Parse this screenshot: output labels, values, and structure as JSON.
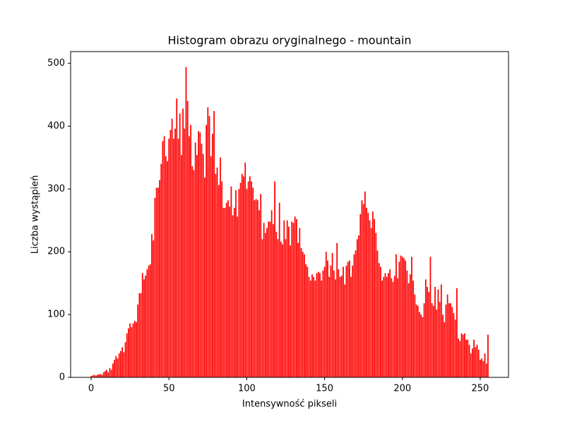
{
  "chart_data": {
    "type": "bar",
    "title": "Histogram obrazu oryginalnego - mountain",
    "x_label": "Intensywność pikseli",
    "y_label": "Liczba wystąpień",
    "color": "#ff0000",
    "x": [
      0,
      1,
      2,
      3,
      4,
      5,
      6,
      7,
      8,
      9,
      10,
      11,
      12,
      13,
      14,
      15,
      16,
      17,
      18,
      19,
      20,
      21,
      22,
      23,
      24,
      25,
      26,
      27,
      28,
      29,
      30,
      31,
      32,
      33,
      34,
      35,
      36,
      37,
      38,
      39,
      40,
      41,
      42,
      43,
      44,
      45,
      46,
      47,
      48,
      49,
      50,
      51,
      52,
      53,
      54,
      55,
      56,
      57,
      58,
      59,
      60,
      61,
      62,
      63,
      64,
      65,
      66,
      67,
      68,
      69,
      70,
      71,
      72,
      73,
      74,
      75,
      76,
      77,
      78,
      79,
      80,
      81,
      82,
      83,
      84,
      85,
      86,
      87,
      88,
      89,
      90,
      91,
      92,
      93,
      94,
      95,
      96,
      97,
      98,
      99,
      100,
      101,
      102,
      103,
      104,
      105,
      106,
      107,
      108,
      109,
      110,
      111,
      112,
      113,
      114,
      115,
      116,
      117,
      118,
      119,
      120,
      121,
      122,
      123,
      124,
      125,
      126,
      127,
      128,
      129,
      130,
      131,
      132,
      133,
      134,
      135,
      136,
      137,
      138,
      139,
      140,
      141,
      142,
      143,
      144,
      145,
      146,
      147,
      148,
      149,
      150,
      151,
      152,
      153,
      154,
      155,
      156,
      157,
      158,
      159,
      160,
      161,
      162,
      163,
      164,
      165,
      166,
      167,
      168,
      169,
      170,
      171,
      172,
      173,
      174,
      175,
      176,
      177,
      178,
      179,
      180,
      181,
      182,
      183,
      184,
      185,
      186,
      187,
      188,
      189,
      190,
      191,
      192,
      193,
      194,
      195,
      196,
      197,
      198,
      199,
      200,
      201,
      202,
      203,
      204,
      205,
      206,
      207,
      208,
      209,
      210,
      211,
      212,
      213,
      214,
      215,
      216,
      217,
      218,
      219,
      220,
      221,
      222,
      223,
      224,
      225,
      226,
      227,
      228,
      229,
      230,
      231,
      232,
      233,
      234,
      235,
      236,
      237,
      238,
      239,
      240,
      241,
      242,
      243,
      244,
      245,
      246,
      247,
      248,
      249,
      250,
      251,
      252,
      253,
      254,
      255
    ],
    "values": [
      2,
      3,
      4,
      3,
      4,
      5,
      5,
      4,
      8,
      10,
      12,
      8,
      15,
      12,
      22,
      28,
      34,
      30,
      38,
      42,
      48,
      40,
      56,
      70,
      78,
      86,
      80,
      86,
      90,
      88,
      116,
      134,
      134,
      166,
      156,
      162,
      172,
      178,
      180,
      228,
      218,
      286,
      302,
      302,
      314,
      340,
      376,
      384,
      352,
      344,
      380,
      394,
      412,
      380,
      396,
      444,
      380,
      420,
      354,
      428,
      396,
      494,
      440,
      384,
      402,
      336,
      330,
      374,
      354,
      392,
      390,
      372,
      356,
      318,
      402,
      430,
      416,
      352,
      388,
      424,
      324,
      334,
      306,
      350,
      312,
      270,
      270,
      278,
      282,
      272,
      304,
      258,
      270,
      298,
      256,
      300,
      310,
      324,
      320,
      342,
      300,
      312,
      320,
      312,
      302,
      282,
      284,
      282,
      266,
      292,
      220,
      246,
      230,
      238,
      248,
      248,
      266,
      244,
      312,
      232,
      220,
      278,
      216,
      212,
      250,
      220,
      250,
      240,
      210,
      248,
      246,
      256,
      252,
      214,
      238,
      206,
      200,
      196,
      180,
      176,
      160,
      154,
      164,
      160,
      154,
      166,
      168,
      166,
      154,
      170,
      176,
      200,
      186,
      160,
      178,
      198,
      170,
      156,
      214,
      172,
      160,
      162,
      176,
      148,
      178,
      184,
      186,
      160,
      178,
      196,
      202,
      220,
      226,
      260,
      282,
      276,
      296,
      270,
      262,
      250,
      238,
      264,
      252,
      230,
      202,
      182,
      176,
      154,
      160,
      166,
      160,
      166,
      172,
      158,
      152,
      162,
      196,
      158,
      184,
      194,
      192,
      190,
      186,
      170,
      150,
      164,
      192,
      154,
      132,
      116,
      114,
      104,
      100,
      96,
      118,
      156,
      144,
      136,
      192,
      118,
      114,
      144,
      108,
      140,
      120,
      148,
      100,
      88,
      116,
      132,
      118,
      118,
      112,
      102,
      92,
      142,
      62,
      58,
      70,
      68,
      70,
      60,
      60,
      52,
      38,
      46,
      60,
      48,
      52,
      44,
      28,
      30,
      26,
      38,
      22,
      68
    ],
    "xlim": [
      -13.19,
      268.19
    ],
    "ylim": [
      0,
      518.7
    ],
    "xticks": [
      0,
      50,
      100,
      150,
      200,
      250
    ],
    "yticks": [
      0,
      100,
      200,
      300,
      400,
      500
    ]
  }
}
